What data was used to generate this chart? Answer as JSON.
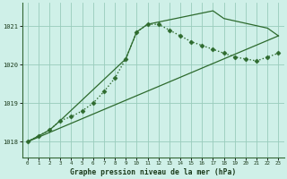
{
  "title": "Graphe pression niveau de la mer (hPa)",
  "bg_color": "#cff0e8",
  "grid_color": "#99ccbb",
  "line_color": "#2d6a2d",
  "xlim": [
    -0.5,
    23.5
  ],
  "ylim": [
    1017.6,
    1021.6
  ],
  "yticks": [
    1018,
    1019,
    1020,
    1021
  ],
  "xticks": [
    0,
    1,
    2,
    3,
    4,
    5,
    6,
    7,
    8,
    9,
    10,
    11,
    12,
    13,
    14,
    15,
    16,
    17,
    18,
    19,
    20,
    21,
    22,
    23
  ],
  "series_main": {
    "x": [
      0,
      1,
      2,
      3,
      4,
      5,
      6,
      7,
      8,
      9,
      10,
      11,
      12,
      13,
      14,
      15,
      16,
      17,
      18,
      19,
      20,
      21,
      22,
      23
    ],
    "y": [
      1018.0,
      1018.15,
      1018.3,
      1018.55,
      1018.65,
      1018.8,
      1019.0,
      1019.3,
      1019.65,
      1020.15,
      1020.85,
      1021.05,
      1021.05,
      1020.9,
      1020.75,
      1020.6,
      1020.5,
      1020.4,
      1020.3,
      1020.2,
      1020.15,
      1020.1,
      1020.2,
      1020.3
    ]
  },
  "series_upper": {
    "x": [
      0,
      2,
      3,
      9,
      10,
      11,
      17,
      18,
      22,
      23
    ],
    "y": [
      1018.0,
      1018.3,
      1018.55,
      1020.15,
      1020.85,
      1021.05,
      1021.4,
      1021.2,
      1020.95,
      1020.75
    ]
  },
  "series_lower": {
    "x": [
      0,
      23
    ],
    "y": [
      1018.0,
      1020.75
    ]
  }
}
